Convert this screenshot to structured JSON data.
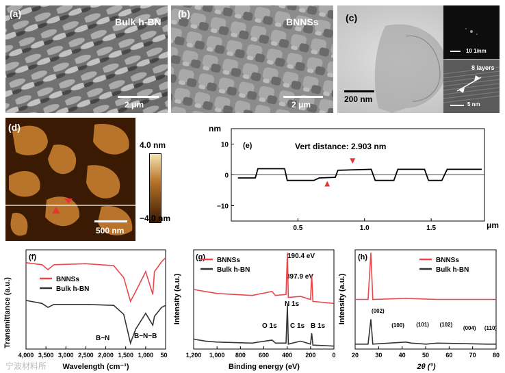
{
  "panel_a": {
    "label": "(a)",
    "title": "Bulk h-BN",
    "scale": "2 μm"
  },
  "panel_b": {
    "label": "(b)",
    "title": "BNNSs",
    "scale": "2 μm"
  },
  "panel_c": {
    "label": "(c)",
    "scale": "200 nm",
    "fft_scale": "10 1/nm",
    "hr_scale": "5 nm",
    "layers": "8 layers"
  },
  "panel_d": {
    "label": "(d)",
    "scale": "500 nm",
    "cb_max": "4.0 nm",
    "cb_min": "−4.0 nm"
  },
  "panel_f": {
    "label": "(f)"
  },
  "panel_g": {
    "label": "(g)"
  },
  "panel_h": {
    "label": "(h)"
  },
  "watermark": "宁波材料所",
  "chart_data": [
    {
      "id": "e",
      "type": "line",
      "label": "(e)",
      "ylabel": "nm",
      "xlabel": "μm",
      "annotation": "Vert distance: 2.903 nm",
      "xlim": [
        0,
        1.9
      ],
      "ylim": [
        -15,
        15
      ],
      "xticks": [
        "0.5",
        "1.0",
        "1.5"
      ],
      "yticks": [
        "10",
        "0",
        "−10"
      ],
      "series": [
        {
          "values": [
            [
              0.05,
              -1.0
            ],
            [
              0.18,
              -1.0
            ],
            [
              0.2,
              2.0
            ],
            [
              0.4,
              2.0
            ],
            [
              0.42,
              -1.8
            ],
            [
              0.62,
              -1.8
            ],
            [
              0.66,
              -1.0
            ],
            [
              0.78,
              -0.8
            ],
            [
              0.8,
              1.5
            ],
            [
              1.05,
              1.8
            ],
            [
              1.08,
              -1.8
            ],
            [
              1.22,
              -1.8
            ],
            [
              1.25,
              1.8
            ],
            [
              1.45,
              1.8
            ],
            [
              1.48,
              -1.8
            ],
            [
              1.58,
              -1.8
            ],
            [
              1.62,
              1.8
            ],
            [
              1.88,
              1.8
            ]
          ]
        }
      ],
      "markers": [
        [
          0.72,
          -2.0
        ],
        [
          0.91,
          3.6
        ]
      ]
    },
    {
      "id": "f",
      "type": "line",
      "label": "(f)",
      "ylabel": "Transmittance (a.u.)",
      "xlabel": "Wavelength (cm⁻¹)",
      "xlim": [
        4000,
        500
      ],
      "xticks": [
        "4,000",
        "3,500",
        "3,000",
        "2,500",
        "2,000",
        "1,500",
        "1,000",
        "500"
      ],
      "annotations": [
        "B−N",
        "B−N−B"
      ],
      "series": [
        {
          "name": "BNNSs",
          "color": "#e8474c",
          "values": [
            [
              4000,
              0.87
            ],
            [
              3600,
              0.85
            ],
            [
              3450,
              0.8
            ],
            [
              3300,
              0.85
            ],
            [
              2500,
              0.86
            ],
            [
              1800,
              0.84
            ],
            [
              1550,
              0.72
            ],
            [
              1380,
              0.48
            ],
            [
              1250,
              0.58
            ],
            [
              1000,
              0.78
            ],
            [
              820,
              0.55
            ],
            [
              780,
              0.78
            ],
            [
              600,
              0.88
            ],
            [
              500,
              0.92
            ]
          ]
        },
        {
          "name": "Bulk h-BN",
          "color": "#333333",
          "values": [
            [
              4000,
              0.49
            ],
            [
              3600,
              0.46
            ],
            [
              3450,
              0.42
            ],
            [
              3300,
              0.45
            ],
            [
              2500,
              0.45
            ],
            [
              1800,
              0.44
            ],
            [
              1550,
              0.35
            ],
            [
              1380,
              0.06
            ],
            [
              1250,
              0.2
            ],
            [
              1000,
              0.36
            ],
            [
              820,
              0.24
            ],
            [
              780,
              0.33
            ],
            [
              600,
              0.42
            ],
            [
              500,
              0.44
            ]
          ]
        }
      ]
    },
    {
      "id": "g",
      "type": "line",
      "label": "(g)",
      "ylabel": "Intensity (a.u.)",
      "xlabel": "Binding energy (eV)",
      "xlim": [
        1200,
        0
      ],
      "xticks": [
        "1,200",
        "1,000",
        "800",
        "600",
        "400",
        "200",
        "0"
      ],
      "annotations": [
        "190.4 eV",
        "397.9 eV",
        "N 1s",
        "O 1s",
        "C 1s",
        "B 1s"
      ],
      "series": [
        {
          "name": "BNNSs",
          "color": "#e8474c",
          "values": [
            [
              1200,
              0.6
            ],
            [
              1100,
              0.58
            ],
            [
              1000,
              0.56
            ],
            [
              700,
              0.54
            ],
            [
              530,
              0.58
            ],
            [
              500,
              0.54
            ],
            [
              410,
              0.55
            ],
            [
              398,
              0.97
            ],
            [
              390,
              0.52
            ],
            [
              285,
              0.53
            ],
            [
              200,
              0.5
            ],
            [
              190,
              0.75
            ],
            [
              180,
              0.48
            ],
            [
              0,
              0.46
            ]
          ]
        },
        {
          "name": "Bulk h-BN",
          "color": "#333333",
          "values": [
            [
              1200,
              0.1
            ],
            [
              1100,
              0.08
            ],
            [
              1000,
              0.07
            ],
            [
              700,
              0.06
            ],
            [
              530,
              0.09
            ],
            [
              500,
              0.06
            ],
            [
              410,
              0.06
            ],
            [
              398,
              0.44
            ],
            [
              390,
              0.05
            ],
            [
              285,
              0.08
            ],
            [
              200,
              0.05
            ],
            [
              190,
              0.16
            ],
            [
              180,
              0.04
            ],
            [
              0,
              0.03
            ]
          ]
        }
      ]
    },
    {
      "id": "h",
      "type": "line",
      "label": "(h)",
      "ylabel": "Intensity (a.u.)",
      "xlabel": "2θ (°)",
      "xlim": [
        20,
        80
      ],
      "xticks": [
        "20",
        "30",
        "40",
        "50",
        "60",
        "70",
        "80"
      ],
      "annotations": [
        "(002)",
        "(100)",
        "(101)",
        "(102)",
        "(004)",
        "(110)"
      ],
      "series": [
        {
          "name": "BNNSs",
          "color": "#e8474c",
          "values": [
            [
              20,
              0.5
            ],
            [
              25.5,
              0.5
            ],
            [
              26.7,
              0.97
            ],
            [
              27.5,
              0.5
            ],
            [
              41.6,
              0.51
            ],
            [
              55,
              0.5
            ],
            [
              80,
              0.5
            ]
          ]
        },
        {
          "name": "Bulk h-BN",
          "color": "#333333",
          "values": [
            [
              20,
              0.05
            ],
            [
              25.5,
              0.05
            ],
            [
              26.7,
              0.3
            ],
            [
              27.5,
              0.05
            ],
            [
              41.6,
              0.07
            ],
            [
              43.9,
              0.06
            ],
            [
              50.2,
              0.05
            ],
            [
              55,
              0.06
            ],
            [
              76,
              0.05
            ],
            [
              80,
              0.05
            ]
          ]
        }
      ]
    }
  ]
}
